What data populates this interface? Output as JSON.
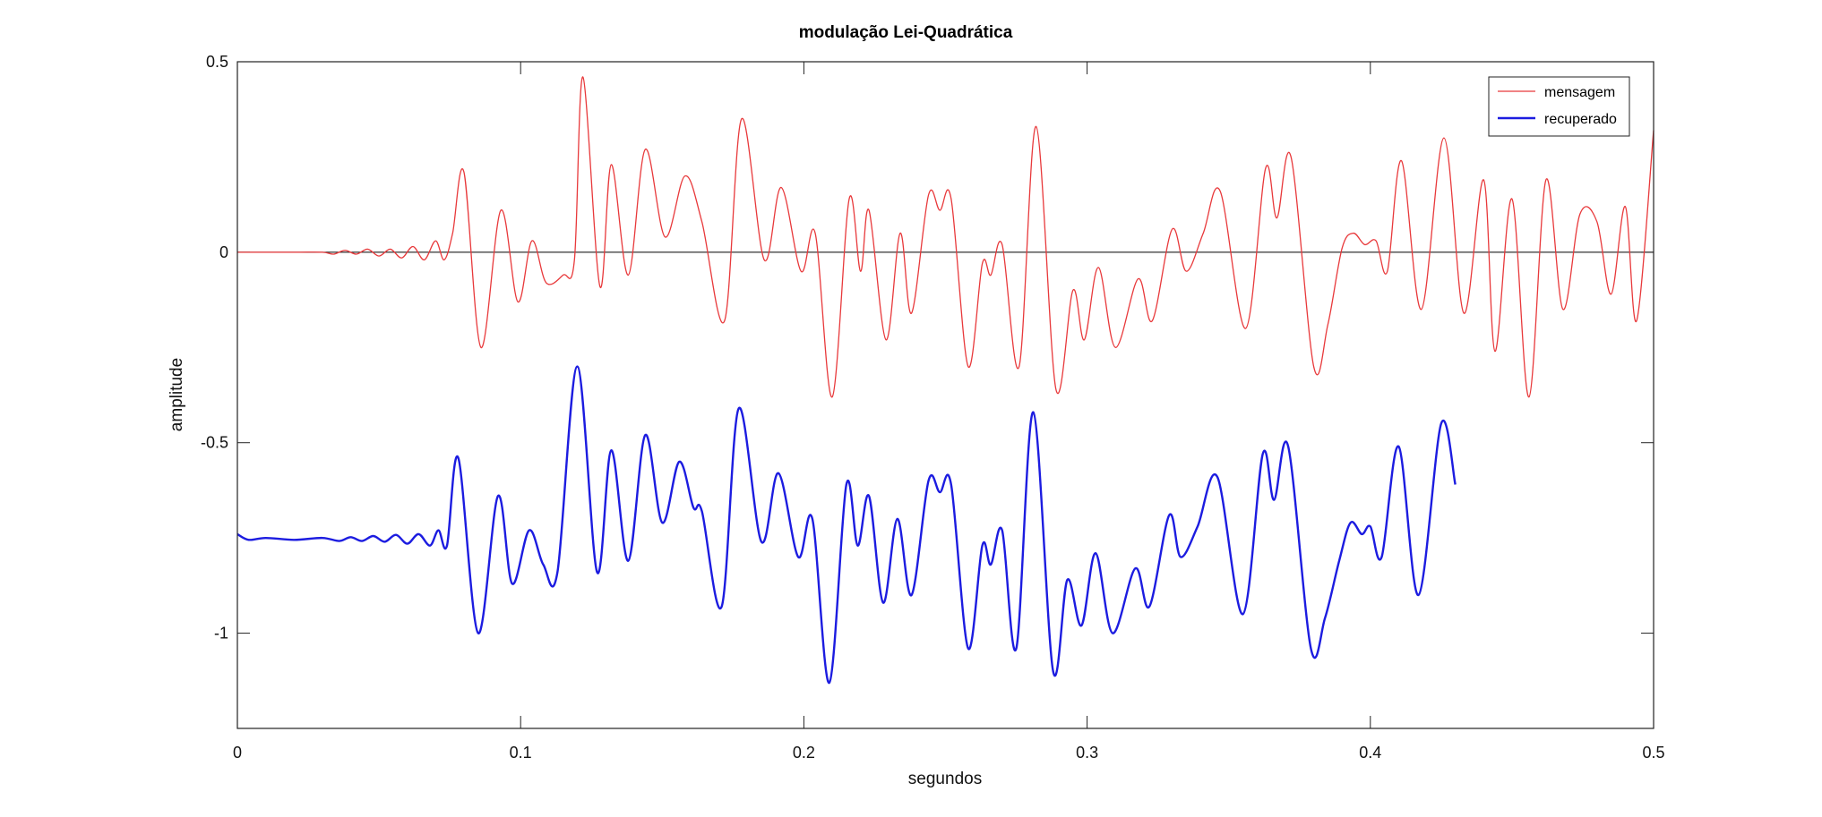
{
  "chart_data": {
    "type": "line",
    "title": "modulação Lei-Quadrática",
    "xlabel": "segundos",
    "ylabel": "amplitude",
    "xlim": [
      0,
      0.5
    ],
    "ylim": [
      -1.25,
      0.5
    ],
    "xticks": [
      0,
      0.1,
      0.2,
      0.3,
      0.4,
      0.5
    ],
    "xtick_labels": [
      "0",
      "0.1",
      "0.2",
      "0.3",
      "0.4",
      "0.5"
    ],
    "yticks": [
      0.5,
      0,
      -0.5,
      -1
    ],
    "ytick_labels": [
      "0.5",
      "0",
      "-0.5",
      "-1"
    ],
    "zero_line": true,
    "grid": false,
    "legend_position": "top-right",
    "series": [
      {
        "name": "mensagem",
        "color": "#e8393b",
        "points": [
          [
            0,
            0.0
          ],
          [
            0.02,
            0.0
          ],
          [
            0.03,
            0.0
          ],
          [
            0.034,
            -0.005
          ],
          [
            0.038,
            0.005
          ],
          [
            0.042,
            -0.005
          ],
          [
            0.046,
            0.008
          ],
          [
            0.05,
            -0.01
          ],
          [
            0.054,
            0.008
          ],
          [
            0.058,
            -0.015
          ],
          [
            0.062,
            0.015
          ],
          [
            0.066,
            -0.02
          ],
          [
            0.07,
            0.03
          ],
          [
            0.073,
            -0.02
          ],
          [
            0.076,
            0.05
          ],
          [
            0.08,
            0.21
          ],
          [
            0.086,
            -0.25
          ],
          [
            0.093,
            0.11
          ],
          [
            0.099,
            -0.13
          ],
          [
            0.104,
            0.03
          ],
          [
            0.109,
            -0.08
          ],
          [
            0.115,
            -0.06
          ],
          [
            0.119,
            -0.02
          ],
          [
            0.122,
            0.46
          ],
          [
            0.128,
            -0.09
          ],
          [
            0.132,
            0.23
          ],
          [
            0.138,
            -0.06
          ],
          [
            0.144,
            0.27
          ],
          [
            0.151,
            0.04
          ],
          [
            0.158,
            0.2
          ],
          [
            0.164,
            0.08
          ],
          [
            0.172,
            -0.18
          ],
          [
            0.178,
            0.35
          ],
          [
            0.186,
            -0.02
          ],
          [
            0.192,
            0.17
          ],
          [
            0.199,
            -0.05
          ],
          [
            0.204,
            0.05
          ],
          [
            0.21,
            -0.38
          ],
          [
            0.216,
            0.14
          ],
          [
            0.22,
            -0.05
          ],
          [
            0.223,
            0.11
          ],
          [
            0.229,
            -0.23
          ],
          [
            0.234,
            0.05
          ],
          [
            0.238,
            -0.16
          ],
          [
            0.244,
            0.15
          ],
          [
            0.248,
            0.11
          ],
          [
            0.252,
            0.14
          ],
          [
            0.258,
            -0.3
          ],
          [
            0.263,
            -0.03
          ],
          [
            0.266,
            -0.06
          ],
          [
            0.27,
            0.02
          ],
          [
            0.276,
            -0.3
          ],
          [
            0.282,
            0.33
          ],
          [
            0.289,
            -0.36
          ],
          [
            0.295,
            -0.1
          ],
          [
            0.299,
            -0.23
          ],
          [
            0.304,
            -0.04
          ],
          [
            0.31,
            -0.25
          ],
          [
            0.318,
            -0.07
          ],
          [
            0.323,
            -0.18
          ],
          [
            0.33,
            0.06
          ],
          [
            0.335,
            -0.05
          ],
          [
            0.341,
            0.05
          ],
          [
            0.347,
            0.16
          ],
          [
            0.356,
            -0.2
          ],
          [
            0.363,
            0.22
          ],
          [
            0.367,
            0.09
          ],
          [
            0.372,
            0.25
          ],
          [
            0.38,
            -0.3
          ],
          [
            0.385,
            -0.19
          ],
          [
            0.39,
            0.01
          ],
          [
            0.394,
            0.05
          ],
          [
            0.398,
            0.02
          ],
          [
            0.402,
            0.03
          ],
          [
            0.406,
            -0.05
          ],
          [
            0.411,
            0.24
          ],
          [
            0.418,
            -0.15
          ],
          [
            0.426,
            0.3
          ],
          [
            0.433,
            -0.16
          ],
          [
            0.44,
            0.19
          ],
          [
            0.444,
            -0.26
          ],
          [
            0.45,
            0.14
          ],
          [
            0.456,
            -0.38
          ],
          [
            0.462,
            0.19
          ],
          [
            0.468,
            -0.15
          ],
          [
            0.474,
            0.1
          ],
          [
            0.48,
            0.08
          ],
          [
            0.485,
            -0.11
          ],
          [
            0.49,
            0.12
          ],
          [
            0.494,
            -0.18
          ],
          [
            0.5,
            0.32
          ]
        ]
      },
      {
        "name": "recuperado",
        "color": "#1c1ce0",
        "points": [
          [
            0,
            -0.74
          ],
          [
            0.004,
            -0.755
          ],
          [
            0.01,
            -0.75
          ],
          [
            0.02,
            -0.755
          ],
          [
            0.03,
            -0.75
          ],
          [
            0.036,
            -0.758
          ],
          [
            0.04,
            -0.748
          ],
          [
            0.044,
            -0.758
          ],
          [
            0.048,
            -0.745
          ],
          [
            0.052,
            -0.76
          ],
          [
            0.056,
            -0.742
          ],
          [
            0.06,
            -0.765
          ],
          [
            0.064,
            -0.74
          ],
          [
            0.068,
            -0.77
          ],
          [
            0.071,
            -0.73
          ],
          [
            0.074,
            -0.77
          ],
          [
            0.078,
            -0.54
          ],
          [
            0.085,
            -1.0
          ],
          [
            0.092,
            -0.64
          ],
          [
            0.097,
            -0.87
          ],
          [
            0.103,
            -0.73
          ],
          [
            0.108,
            -0.82
          ],
          [
            0.113,
            -0.84
          ],
          [
            0.12,
            -0.3
          ],
          [
            0.127,
            -0.84
          ],
          [
            0.132,
            -0.52
          ],
          [
            0.138,
            -0.81
          ],
          [
            0.144,
            -0.48
          ],
          [
            0.15,
            -0.71
          ],
          [
            0.156,
            -0.55
          ],
          [
            0.161,
            -0.67
          ],
          [
            0.164,
            -0.68
          ],
          [
            0.171,
            -0.93
          ],
          [
            0.177,
            -0.41
          ],
          [
            0.185,
            -0.76
          ],
          [
            0.191,
            -0.58
          ],
          [
            0.198,
            -0.8
          ],
          [
            0.203,
            -0.7
          ],
          [
            0.209,
            -1.13
          ],
          [
            0.215,
            -0.61
          ],
          [
            0.219,
            -0.77
          ],
          [
            0.223,
            -0.64
          ],
          [
            0.228,
            -0.92
          ],
          [
            0.233,
            -0.7
          ],
          [
            0.238,
            -0.9
          ],
          [
            0.244,
            -0.6
          ],
          [
            0.248,
            -0.63
          ],
          [
            0.252,
            -0.61
          ],
          [
            0.258,
            -1.04
          ],
          [
            0.263,
            -0.77
          ],
          [
            0.266,
            -0.82
          ],
          [
            0.27,
            -0.73
          ],
          [
            0.275,
            -1.04
          ],
          [
            0.281,
            -0.42
          ],
          [
            0.288,
            -1.1
          ],
          [
            0.293,
            -0.86
          ],
          [
            0.298,
            -0.98
          ],
          [
            0.303,
            -0.79
          ],
          [
            0.309,
            -1.0
          ],
          [
            0.317,
            -0.83
          ],
          [
            0.322,
            -0.93
          ],
          [
            0.329,
            -0.69
          ],
          [
            0.333,
            -0.8
          ],
          [
            0.339,
            -0.72
          ],
          [
            0.346,
            -0.59
          ],
          [
            0.355,
            -0.95
          ],
          [
            0.362,
            -0.53
          ],
          [
            0.366,
            -0.65
          ],
          [
            0.371,
            -0.51
          ],
          [
            0.379,
            -1.04
          ],
          [
            0.384,
            -0.96
          ],
          [
            0.389,
            -0.81
          ],
          [
            0.393,
            -0.71
          ],
          [
            0.397,
            -0.74
          ],
          [
            0.4,
            -0.72
          ],
          [
            0.404,
            -0.8
          ],
          [
            0.41,
            -0.51
          ],
          [
            0.417,
            -0.9
          ],
          [
            0.425,
            -0.45
          ],
          [
            0.43,
            -0.61
          ]
        ]
      }
    ]
  }
}
